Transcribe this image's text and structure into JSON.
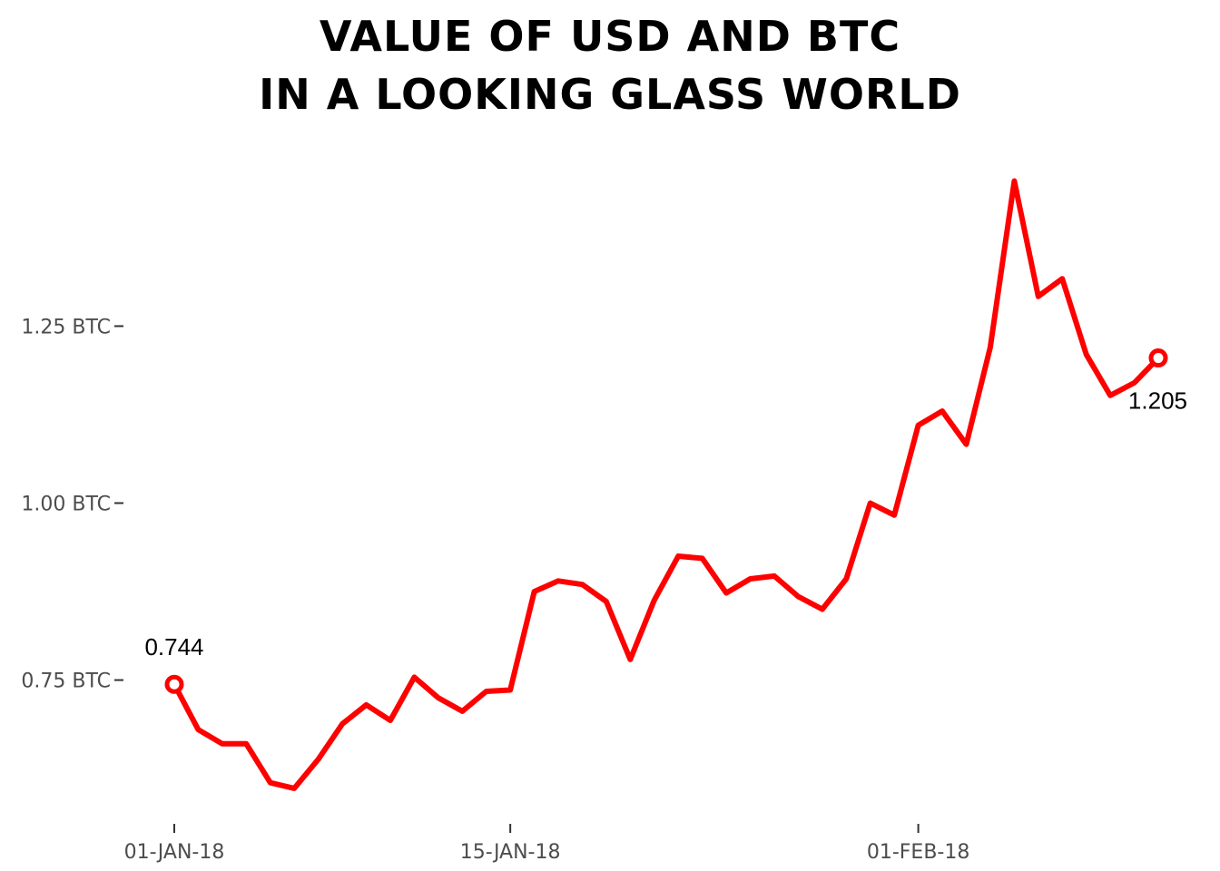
{
  "chart_data": {
    "type": "line",
    "title_lines": [
      "VALUE OF USD AND BTC",
      "IN A LOOKING GLASS WORLD"
    ],
    "xlabel": "",
    "ylabel": "",
    "y_unit": "BTC",
    "ylim": [
      0.57,
      1.48
    ],
    "y_ticks": [
      0.75,
      1.0,
      1.25
    ],
    "y_tick_labels": [
      "0.75 BTC",
      "1.00 BTC",
      "1.25 BTC"
    ],
    "x_ticks": [
      "2018-01-01",
      "2018-01-15",
      "2018-02-01"
    ],
    "x_tick_labels": [
      "01-JAN-18",
      "15-JAN-18",
      "01-FEB-18"
    ],
    "grid": false,
    "legend": "none",
    "color": "#ff0000",
    "series": [
      {
        "x": [
          "2018-01-01",
          "2018-01-02",
          "2018-01-03",
          "2018-01-04",
          "2018-01-05",
          "2018-01-06",
          "2018-01-07",
          "2018-01-08",
          "2018-01-09",
          "2018-01-10",
          "2018-01-11",
          "2018-01-12",
          "2018-01-13",
          "2018-01-14",
          "2018-01-15",
          "2018-01-16",
          "2018-01-17",
          "2018-01-18",
          "2018-01-19",
          "2018-01-20",
          "2018-01-21",
          "2018-01-22",
          "2018-01-23",
          "2018-01-24",
          "2018-01-25",
          "2018-01-26",
          "2018-01-27",
          "2018-01-28",
          "2018-01-29",
          "2018-01-30",
          "2018-01-31",
          "2018-02-01",
          "2018-02-02",
          "2018-02-03",
          "2018-02-04",
          "2018-02-05",
          "2018-02-06",
          "2018-02-07",
          "2018-02-08",
          "2018-02-09",
          "2018-02-10",
          "2018-02-11"
        ],
        "values": [
          0.744,
          0.68,
          0.66,
          0.66,
          0.605,
          0.597,
          0.638,
          0.688,
          0.715,
          0.693,
          0.754,
          0.725,
          0.706,
          0.734,
          0.736,
          0.875,
          0.89,
          0.885,
          0.861,
          0.779,
          0.863,
          0.925,
          0.922,
          0.873,
          0.893,
          0.897,
          0.868,
          0.85,
          0.893,
          1.0,
          0.983,
          1.11,
          1.13,
          1.083,
          1.22,
          1.455,
          1.292,
          1.317,
          1.21,
          1.152,
          1.17,
          1.205
        ]
      }
    ],
    "annotations": [
      {
        "x": "2018-01-01",
        "y": 0.744,
        "text": "0.744"
      },
      {
        "x": "2018-02-11",
        "y": 1.205,
        "text": "1.205"
      }
    ]
  }
}
